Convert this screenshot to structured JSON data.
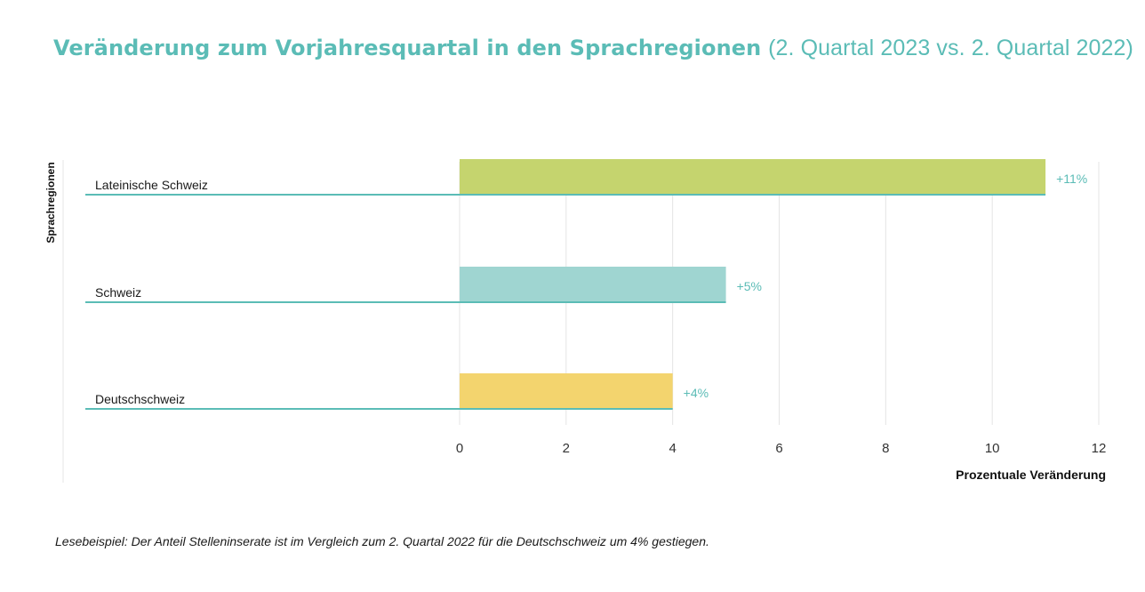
{
  "title": {
    "bold": "Veränderung zum Vorjahresquartal in den Sprachregionen",
    "light": "(2. Quartal 2023 vs. 2. Quartal 2022)"
  },
  "footnote": "Lesebeispiel: Der Anteil Stelleninserate ist im Vergleich zum 2. Quartal 2022 für die Deutschschweiz um 4% gestiegen.",
  "chart_data": {
    "type": "bar",
    "orientation": "horizontal",
    "title": "Veränderung zum Vorjahresquartal in den Sprachregionen (2. Quartal 2023 vs. 2. Quartal 2022)",
    "xlabel": "Prozentuale Veränderung",
    "ylabel": "Sprachregionen",
    "categories": [
      "Lateinische Schweiz",
      "Schweiz",
      "Deutschschweiz"
    ],
    "values": [
      11,
      5,
      4
    ],
    "data_labels": [
      "+11%",
      "+5%",
      "+4%"
    ],
    "colors": [
      "#c5d46e",
      "#9fd5d1",
      "#f3d46e"
    ],
    "xlim": [
      0,
      12
    ],
    "xticks": [
      0,
      2,
      4,
      6,
      8,
      10,
      12
    ],
    "grid": "vertical",
    "accent_color": "#5bbcb6"
  }
}
